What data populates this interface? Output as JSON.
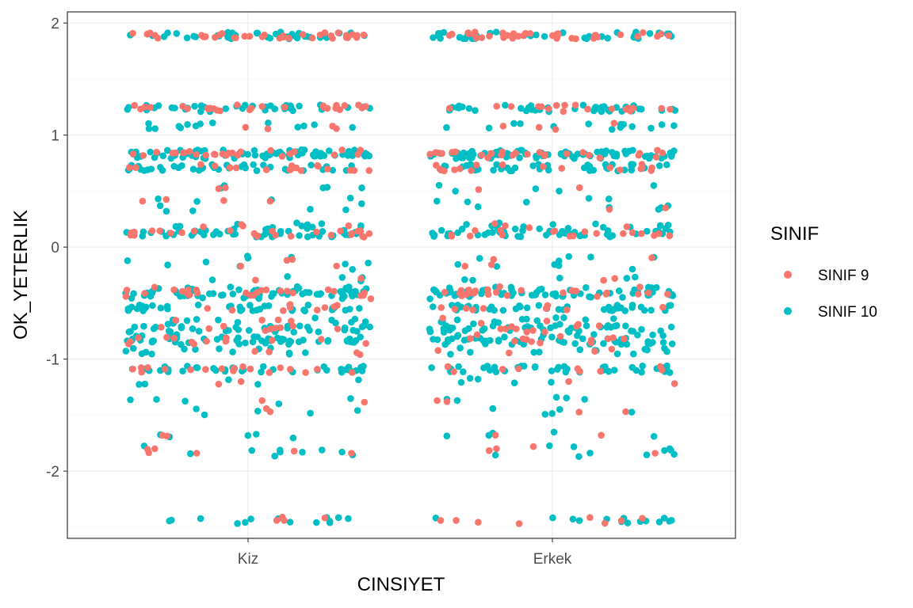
{
  "chart_data": {
    "type": "scatter",
    "title": "",
    "xlabel": "CINSIYET",
    "ylabel": "OK_YETERLIK",
    "categories": [
      "Kiz",
      "Erkek"
    ],
    "ylim": [
      -2.6,
      2.1
    ],
    "yticks": [
      -2,
      -1,
      0,
      1,
      2
    ],
    "grid": true,
    "jitter": true,
    "legend": {
      "title": "SINIF",
      "placement": "right"
    },
    "y_levels": [
      1.89,
      1.24,
      1.08,
      0.84,
      0.82,
      0.71,
      0.53,
      0.41,
      0.35,
      0.19,
      0.14,
      0.12,
      -0.11,
      -0.17,
      -0.28,
      -0.38,
      -0.41,
      -0.44,
      -0.54,
      -0.66,
      -0.73,
      -0.81,
      -0.84,
      -0.93,
      -1.09,
      -1.2,
      -1.37,
      -1.47,
      -1.68,
      -1.8,
      -1.84,
      -2.44
    ],
    "series": [
      {
        "name": "SINIF 9",
        "color": "#F8766D",
        "points": [
          {
            "x": "Kiz",
            "y": [
              1.89,
              1.89,
              1.89,
              1.89,
              1.24,
              1.24,
              1.24,
              1.08,
              0.84,
              0.84,
              0.82,
              0.71,
              0.71,
              0.53,
              0.41,
              0.41,
              0.19,
              0.12,
              0.12,
              0.12,
              -0.11,
              -0.17,
              -0.28,
              -0.38,
              -0.41,
              -0.41,
              -0.44,
              -0.54,
              -0.66,
              -0.73,
              -0.81,
              -0.84,
              -0.93,
              -1.09,
              -1.09,
              -1.2,
              -1.37,
              -1.47,
              -1.68,
              -1.8,
              -1.84,
              -1.84,
              -2.44
            ]
          },
          {
            "x": "Erkek",
            "y": [
              1.89,
              1.89,
              1.89,
              1.89,
              1.24,
              1.24,
              1.08,
              0.84,
              0.82,
              0.82,
              0.71,
              0.71,
              0.53,
              0.35,
              0.19,
              0.12,
              0.12,
              -0.11,
              -0.17,
              -0.28,
              -0.38,
              -0.41,
              -0.41,
              -0.44,
              -0.54,
              -0.66,
              -0.73,
              -0.81,
              -0.84,
              -0.93,
              -1.09,
              -1.2,
              -1.37,
              -1.47,
              -1.68,
              -1.8,
              -1.84,
              -2.44,
              -2.44
            ]
          }
        ]
      },
      {
        "name": "SINIF 10",
        "color": "#00BFC4",
        "points": [
          {
            "x": "Kiz",
            "y": [
              1.89,
              1.24,
              1.08,
              0.84,
              0.82,
              0.71,
              0.53,
              0.41,
              0.35,
              0.19,
              0.14,
              0.12,
              -0.11,
              -0.17,
              -0.28,
              -0.38,
              -0.41,
              -0.44,
              -0.54,
              -0.66,
              -0.73,
              -0.81,
              -0.84,
              -0.93,
              -1.09,
              -1.2,
              -1.37,
              -1.47,
              -1.68,
              -1.8,
              -1.84,
              -2.44
            ]
          },
          {
            "x": "Erkek",
            "y": [
              1.89,
              1.24,
              1.08,
              0.84,
              0.82,
              0.71,
              0.53,
              0.41,
              0.35,
              0.19,
              0.14,
              0.12,
              -0.11,
              -0.17,
              -0.28,
              -0.38,
              -0.41,
              -0.44,
              -0.54,
              -0.66,
              -0.73,
              -0.81,
              -0.84,
              -0.93,
              -1.09,
              -1.2,
              -1.37,
              -1.47,
              -1.68,
              -1.8,
              -1.84,
              -2.44
            ]
          }
        ]
      }
    ]
  }
}
